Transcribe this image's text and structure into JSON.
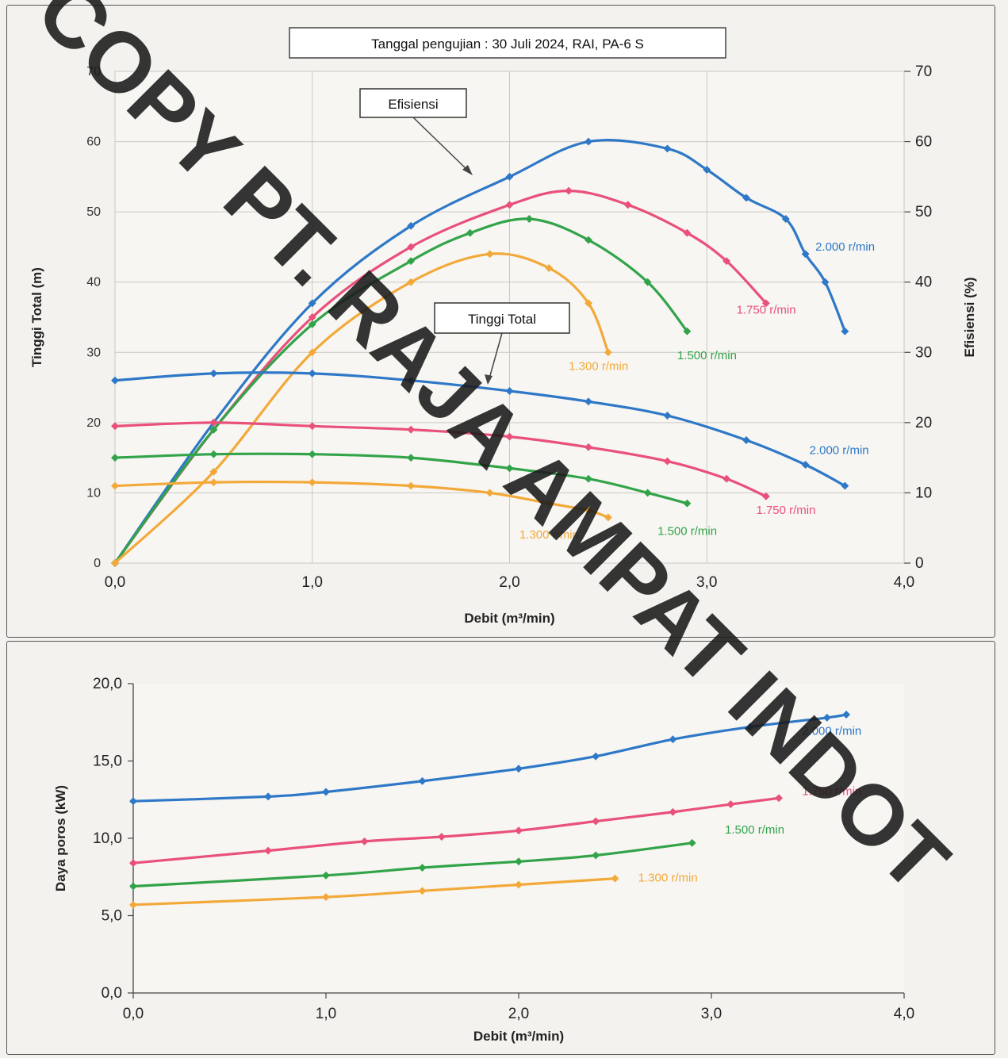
{
  "header": {
    "test_info": "Tanggal pengujian : 30 Juli 2024,  RAI, PA-6 S"
  },
  "annotations": {
    "efficiency_label": "Efisiensi",
    "head_label": "Tinggi Total"
  },
  "watermark": {
    "text": "COPY PT. RAJA AMPAT INDOT"
  },
  "colors": {
    "s2000": "#2e78c7",
    "s1750": "#e9507a",
    "s1500": "#33a34a",
    "s1300": "#f3a93a"
  },
  "chart_data": [
    {
      "id": "top",
      "type": "line",
      "xlabel": "Debit (m³/min)",
      "ylabel_left": "Tinggi Total (m)",
      "ylabel_right": "Efisiensi (%)",
      "xlim": [
        0,
        4
      ],
      "ylim_left": [
        0,
        70
      ],
      "ylim_right": [
        0,
        70
      ],
      "x_ticks": [
        "0,0",
        "1,0",
        "2,0",
        "3,0",
        "4,0"
      ],
      "y_left_ticks": [
        "0",
        "10",
        "20",
        "30",
        "40",
        "50",
        "60",
        "70"
      ],
      "y_right_ticks": [
        "0",
        "10",
        "20",
        "30",
        "40",
        "50",
        "60",
        "70"
      ],
      "grid": true,
      "series": [
        {
          "name": "2.000 r/min",
          "kind": "efficiency",
          "color": "#2e78c7",
          "x": [
            0,
            0.5,
            1.0,
            1.5,
            2.0,
            2.4,
            2.8,
            3.0,
            3.2,
            3.4,
            3.5,
            3.6,
            3.7
          ],
          "y": [
            0,
            20,
            37,
            48,
            55,
            60,
            59,
            56,
            52,
            49,
            44,
            40,
            33
          ]
        },
        {
          "name": "1.750 r/min",
          "kind": "efficiency",
          "color": "#e9507a",
          "x": [
            0,
            0.5,
            1.0,
            1.5,
            2.0,
            2.3,
            2.6,
            2.9,
            3.1,
            3.3
          ],
          "y": [
            0,
            19,
            35,
            45,
            51,
            53,
            51,
            47,
            43,
            37
          ]
        },
        {
          "name": "1.500 r/min",
          "kind": "efficiency",
          "color": "#33a34a",
          "x": [
            0,
            0.5,
            1.0,
            1.5,
            1.8,
            2.1,
            2.4,
            2.7,
            2.9
          ],
          "y": [
            0,
            19,
            34,
            43,
            47,
            49,
            46,
            40,
            33
          ]
        },
        {
          "name": "1.300 r/min",
          "kind": "efficiency",
          "color": "#f3a93a",
          "x": [
            0,
            0.5,
            1.0,
            1.5,
            1.9,
            2.2,
            2.4,
            2.5
          ],
          "y": [
            0,
            13,
            30,
            40,
            44,
            42,
            37,
            30
          ]
        },
        {
          "name": "2.000 r/min",
          "kind": "head",
          "color": "#2e78c7",
          "x": [
            0,
            0.5,
            1.0,
            1.5,
            2.0,
            2.4,
            2.8,
            3.2,
            3.5,
            3.7
          ],
          "y": [
            26,
            27,
            27,
            26,
            24.5,
            23,
            21,
            17.5,
            14,
            11
          ]
        },
        {
          "name": "1.750 r/min",
          "kind": "head",
          "color": "#e9507a",
          "x": [
            0,
            0.5,
            1.0,
            1.5,
            2.0,
            2.4,
            2.8,
            3.1,
            3.3
          ],
          "y": [
            19.5,
            20,
            19.5,
            19,
            18,
            16.5,
            14.5,
            12,
            9.5
          ]
        },
        {
          "name": "1.500 r/min",
          "kind": "head",
          "color": "#33a34a",
          "x": [
            0,
            0.5,
            1.0,
            1.5,
            2.0,
            2.4,
            2.7,
            2.9
          ],
          "y": [
            15,
            15.5,
            15.5,
            15,
            13.5,
            12,
            10,
            8.5
          ]
        },
        {
          "name": "1.300 r/min",
          "kind": "head",
          "color": "#f3a93a",
          "x": [
            0,
            0.5,
            1.0,
            1.5,
            1.9,
            2.2,
            2.4,
            2.5
          ],
          "y": [
            11,
            11.5,
            11.5,
            11,
            10,
            8.5,
            7.5,
            6.5
          ]
        }
      ],
      "speed_labels": [
        {
          "text": "2.000 r/min",
          "color": "#2e78c7",
          "x": 3.55,
          "y": 44.5,
          "axis": "right"
        },
        {
          "text": "1.750 r/min",
          "color": "#e9507a",
          "x": 3.15,
          "y": 35.5,
          "axis": "right"
        },
        {
          "text": "1.500 r/min",
          "color": "#33a34a",
          "x": 2.85,
          "y": 29,
          "axis": "right"
        },
        {
          "text": "1.300 r/min",
          "color": "#f3a93a",
          "x": 2.3,
          "y": 27.5,
          "axis": "right"
        },
        {
          "text": "2.000 r/min",
          "color": "#2e78c7",
          "x": 3.52,
          "y": 15.5,
          "axis": "left"
        },
        {
          "text": "1.750 r/min",
          "color": "#e9507a",
          "x": 3.25,
          "y": 7,
          "axis": "left"
        },
        {
          "text": "1.500 r/min",
          "color": "#33a34a",
          "x": 2.75,
          "y": 4,
          "axis": "left"
        },
        {
          "text": "1.300 r/min",
          "color": "#f3a93a",
          "x": 2.05,
          "y": 3.5,
          "axis": "left"
        }
      ]
    },
    {
      "id": "bottom",
      "type": "line",
      "xlabel": "Debit (m³/min)",
      "ylabel": "Daya poros (kW)",
      "xlim": [
        0,
        4
      ],
      "ylim": [
        0,
        20
      ],
      "x_ticks": [
        "0,0",
        "1,0",
        "2,0",
        "3,0",
        "4,0"
      ],
      "y_ticks": [
        "0,0",
        "5,0",
        "10,0",
        "15,0",
        "20,0"
      ],
      "grid": false,
      "series": [
        {
          "name": "2.000 r/min",
          "color": "#2e78c7",
          "x": [
            0,
            0.7,
            1.0,
            1.5,
            2.0,
            2.4,
            2.8,
            3.2,
            3.6,
            3.7
          ],
          "y": [
            12.4,
            12.7,
            13.0,
            13.7,
            14.5,
            15.3,
            16.4,
            17.2,
            17.8,
            18.0
          ]
        },
        {
          "name": "1.750 r/min",
          "color": "#e9507a",
          "x": [
            0,
            0.7,
            1.2,
            1.6,
            2.0,
            2.4,
            2.8,
            3.1,
            3.35
          ],
          "y": [
            8.4,
            9.2,
            9.8,
            10.1,
            10.5,
            11.1,
            11.7,
            12.2,
            12.6
          ]
        },
        {
          "name": "1.500 r/min",
          "color": "#33a34a",
          "x": [
            0,
            1.0,
            1.5,
            2.0,
            2.4,
            2.9
          ],
          "y": [
            6.9,
            7.6,
            8.1,
            8.5,
            8.9,
            9.7
          ]
        },
        {
          "name": "1.300 r/min",
          "color": "#f3a93a",
          "x": [
            0,
            1.0,
            1.5,
            2.0,
            2.5
          ],
          "y": [
            5.7,
            6.2,
            6.6,
            7.0,
            7.4
          ]
        }
      ],
      "speed_labels": [
        {
          "text": "2.000 r/min",
          "color": "#2e78c7",
          "x": 3.47,
          "y": 16.7
        },
        {
          "text": "1.750 r/min",
          "color": "#e9507a",
          "x": 3.47,
          "y": 12.8
        },
        {
          "text": "1.500 r/min",
          "color": "#33a34a",
          "x": 3.07,
          "y": 10.3
        },
        {
          "text": "1.300 r/min",
          "color": "#f3a93a",
          "x": 2.62,
          "y": 7.2
        }
      ]
    }
  ]
}
